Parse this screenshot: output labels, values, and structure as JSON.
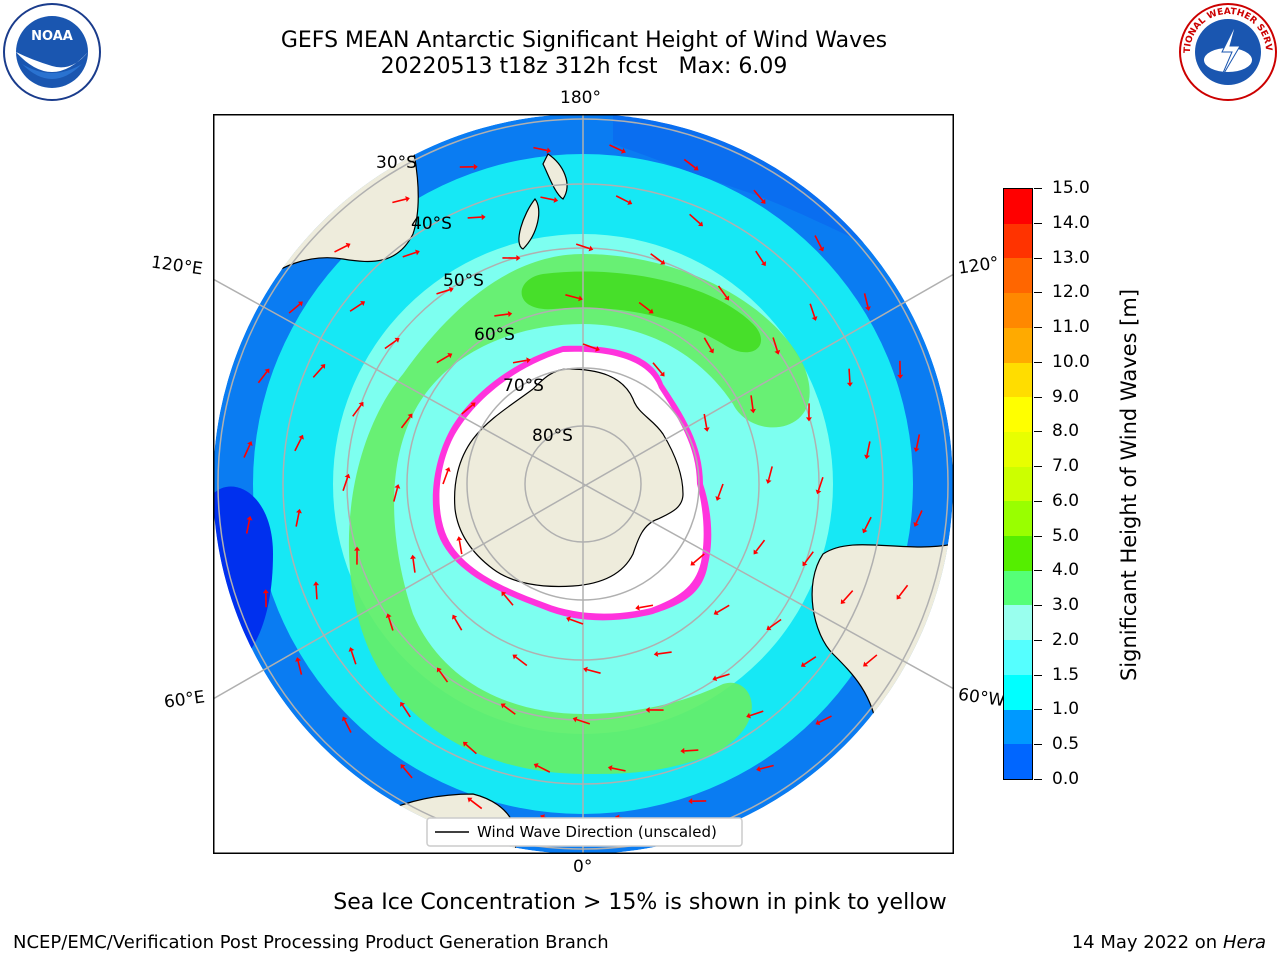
{
  "title": {
    "line1": "GEFS MEAN Antarctic Significant Height of Wind Waves",
    "line2": "20220513 t18z 312h fcst",
    "max_label": "Max: 6.09"
  },
  "map": {
    "projection": "south-polar-stereographic",
    "lon_labels": [
      "180°",
      "120°E",
      "120°",
      "60°E",
      "60°W",
      "0°"
    ],
    "lat_labels": [
      "30°S",
      "40°S",
      "50°S",
      "60°S",
      "70°S",
      "80°S"
    ],
    "legend_label": "Wind Wave Direction (unscaled)",
    "land_color": "#eeecdc",
    "arrow_color": "#ff0000",
    "grid_color": "#b0b0b0"
  },
  "colorbar": {
    "label": "Significant Height of Wind Waves [m]",
    "levels": [
      "15.0",
      "14.0",
      "13.0",
      "12.0",
      "11.0",
      "10.0",
      "9.0",
      "8.0",
      "7.0",
      "6.0",
      "5.0",
      "4.0",
      "3.0",
      "2.0",
      "1.5",
      "1.0",
      "0.5",
      "0.0"
    ],
    "colors_top_to_bottom": [
      "#ff0000",
      "#ff3300",
      "#ff6600",
      "#ff8800",
      "#ffaa00",
      "#ffdd00",
      "#ffff00",
      "#e8ff00",
      "#ccff00",
      "#99ff00",
      "#55ee00",
      "#00ee00",
      "#55ff77",
      "#99ffee",
      "#55ffff",
      "#00ffff",
      "#0099ff",
      "#0066ff",
      "#0000ff"
    ]
  },
  "note": "Sea Ice Concentration > 15% is shown in pink to yellow",
  "footer": {
    "left": "NCEP/EMC/Verification Post Processing Product Generation Branch",
    "right_date": "14 May 2022 on",
    "right_host": "Hera"
  },
  "logos": {
    "left": "NOAA",
    "right": "NATIONAL WEATHER SERVICE"
  }
}
